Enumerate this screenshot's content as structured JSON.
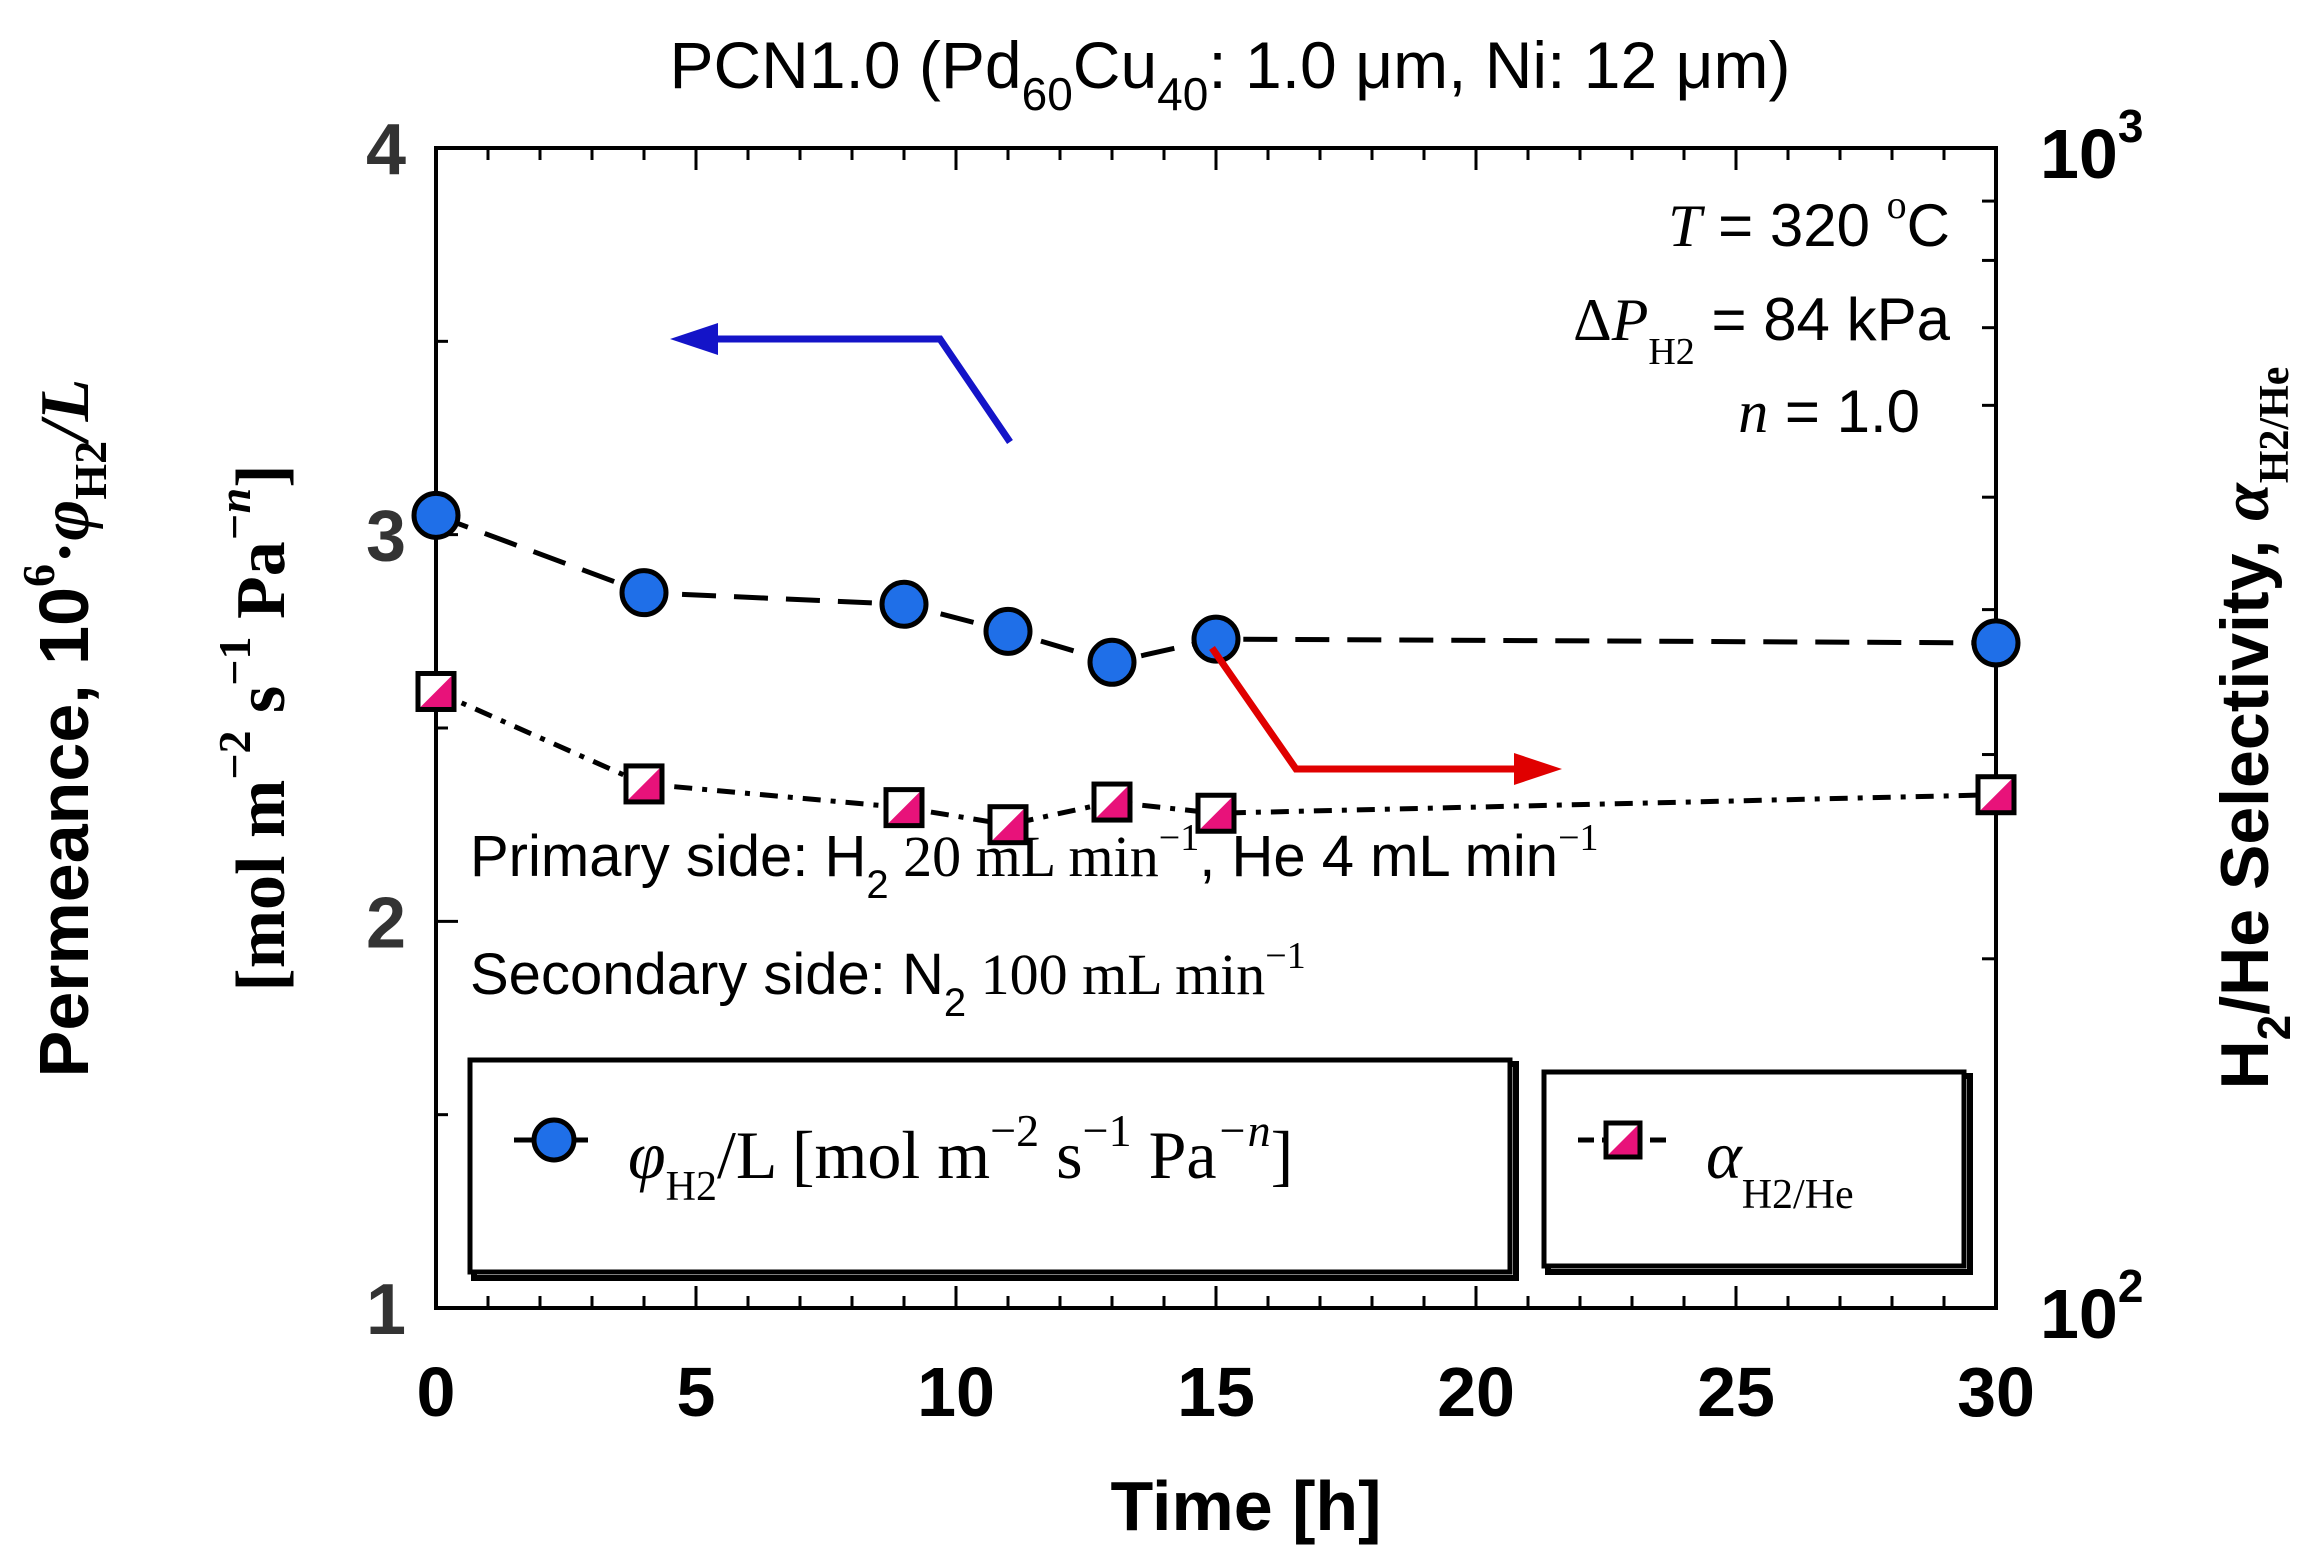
{
  "chart_data": {
    "type": "line",
    "title": {
      "prefix": "PCN1.0 (Pd",
      "sub1": "60",
      "mid": "Cu",
      "sub2": "40",
      "suffix": ": 1.0 μm, Ni: 12 μm)"
    },
    "xlabel": "Time [h]",
    "xlim": [
      0,
      30
    ],
    "x_ticks": [
      0,
      5,
      10,
      15,
      20,
      25,
      30
    ],
    "x_tick_labels": [
      "0",
      "5",
      "10",
      "15",
      "20",
      "25",
      "30"
    ],
    "left_axis": {
      "scale": "linear",
      "ylim": [
        1,
        4
      ],
      "ticks": [
        1,
        2,
        3,
        4
      ],
      "tick_labels": [
        "1",
        "2",
        "3",
        "4"
      ],
      "label_line1": {
        "a": "Permeance, 10",
        "sup": "6",
        "b": "·",
        "phi": "φ",
        "sub": "H2",
        "c": "/L"
      },
      "label_line2": {
        "a": "[mol m",
        "sup1": "−2",
        "b": " s",
        "sup2": "−1",
        "c": " Pa",
        "sup3": "−n",
        "d": "]"
      }
    },
    "right_axis": {
      "scale": "log",
      "ylim": [
        100,
        1000
      ],
      "tick_labels": {
        "base": "10",
        "top_exp": "3",
        "bottom_exp": "2"
      },
      "label": {
        "a": "H",
        "sub1": "2",
        "b": "/He Selectivity, ",
        "alpha": "α",
        "sub2": "H2/He"
      }
    },
    "series": [
      {
        "name": "φH2/L [mol m−2 s−1 Pa−n]",
        "axis": "left",
        "color": "#1f6fe8",
        "marker": "circle",
        "x": [
          0,
          4,
          9,
          11,
          13,
          15,
          30
        ],
        "y": [
          3.05,
          2.85,
          2.82,
          2.75,
          2.67,
          2.73,
          2.72
        ]
      },
      {
        "name": "αH2/He",
        "axis": "right",
        "color": "#e8127a",
        "marker": "square-half",
        "x": [
          0,
          4,
          9,
          11,
          13,
          15,
          30
        ],
        "y": [
          340,
          283,
          270,
          261,
          273,
          267,
          277
        ]
      }
    ],
    "annotations": {
      "conditions": {
        "T_label": "T",
        "T_value": " = 320 ",
        "T_sup": "o",
        "T_unit": "C",
        "dP_delta": "Δ",
        "dP_P": "P",
        "dP_sub": "H2",
        "dP_value": " = 84 kPa",
        "n_label": "n",
        "n_value": " = 1.0"
      },
      "primary": {
        "a": "Primary side: H",
        "sub": "2",
        "b": " 20 mL min",
        "sup1": "−1",
        "c": ", He 4 mL min",
        "sup2": "−1"
      },
      "secondary": {
        "a": "Secondary side: N",
        "sub": "2",
        "b": " 100 mL min",
        "sup": "−1"
      }
    },
    "legend": {
      "placement": "bottom",
      "entry1": {
        "phi": "φ",
        "sub": "H2",
        "a": "/L [mol m",
        "sup1": "−2",
        "b": " s",
        "sup2": "−1",
        "c": " Pa",
        "sup3": "−n",
        "d": "]"
      },
      "entry2": {
        "alpha": "α",
        "sub": "H2/He"
      }
    },
    "arrow_colors": {
      "left_series": "#1414c8",
      "right_series": "#e00000"
    }
  }
}
